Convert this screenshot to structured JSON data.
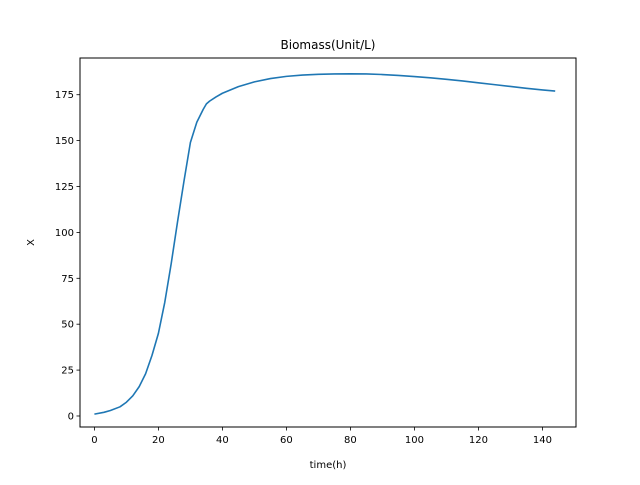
{
  "chart_data": {
    "type": "line",
    "title": "Biomass(Unit/L)",
    "xlabel": "time(h)",
    "ylabel": "X",
    "xlim": [
      -4.5,
      150.5
    ],
    "ylim": [
      -6,
      195
    ],
    "xticks": [
      0,
      20,
      40,
      60,
      80,
      100,
      120,
      140
    ],
    "yticks": [
      0,
      25,
      50,
      75,
      100,
      125,
      150,
      175
    ],
    "grid": false,
    "legend": "none",
    "series": [
      {
        "color": "#1f77b4",
        "x": [
          0,
          3,
          5,
          8,
          10,
          12,
          14,
          16,
          18,
          20,
          22,
          24,
          26,
          28,
          30,
          32,
          34,
          35,
          36,
          38,
          40,
          45,
          50,
          55,
          60,
          65,
          70,
          75,
          80,
          85,
          90,
          95,
          100,
          105,
          110,
          115,
          120,
          125,
          130,
          135,
          140,
          144
        ],
        "y": [
          1,
          2,
          3,
          5,
          7.5,
          11,
          16,
          23,
          33,
          45,
          62,
          83,
          106,
          128,
          149,
          160,
          167,
          170,
          171.5,
          173.8,
          175.8,
          179.4,
          182.0,
          183.8,
          185.0,
          185.7,
          186.1,
          186.3,
          186.4,
          186.3,
          186.0,
          185.5,
          184.9,
          184.2,
          183.4,
          182.5,
          181.5,
          180.5,
          179.5,
          178.5,
          177.6,
          177
        ]
      }
    ]
  }
}
